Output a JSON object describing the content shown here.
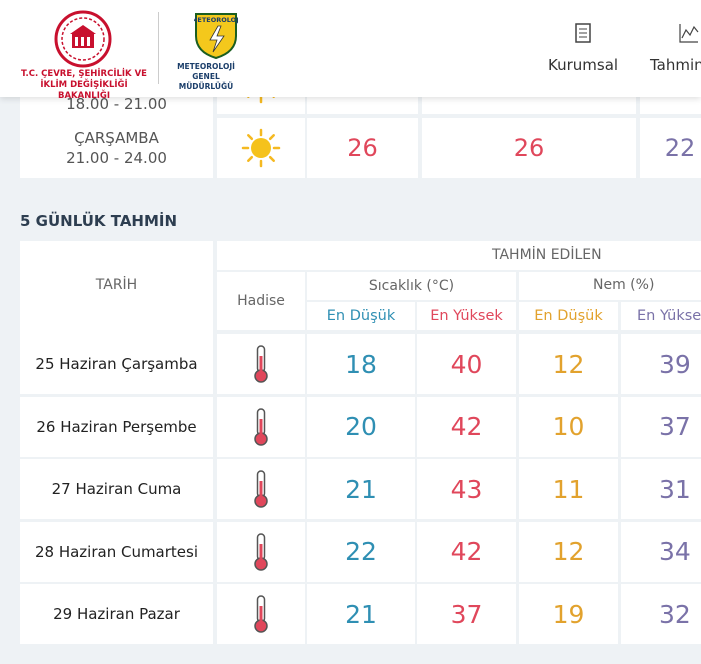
{
  "header": {
    "ministry": [
      "T.C. ÇEVRE, ŞEHİRCİLİK VE",
      "İKLİM DEĞİŞİKLİĞİ BAKANLIĞI"
    ],
    "mgm_badge": "METEOROLOJİ",
    "mgm": [
      "METEOROLOJİ",
      "GENEL MÜDÜRLÜĞÜ"
    ],
    "nav": [
      "Kurumsal",
      "Tahmin"
    ]
  },
  "hourly": {
    "rows": [
      {
        "time": "18.00 - 21.00"
      },
      {
        "day": "ÇARŞAMBA",
        "time": "21.00 - 24.00",
        "values": [
          26,
          26,
          22
        ]
      }
    ]
  },
  "forecast": {
    "title": "5 GÜNLÜK TAHMİN",
    "headers": {
      "date": "TARİH",
      "forecast": "TAHMİN EDİLEN",
      "event": "Hadise",
      "temp": "Sıcaklık (°C)",
      "humidity": "Nem (%)",
      "low": "En Düşük",
      "high": "En Yüksek"
    },
    "rows": [
      {
        "date": "25 Haziran Çarşamba",
        "values": [
          18,
          40,
          12,
          39
        ]
      },
      {
        "date": "26 Haziran Perşembe",
        "values": [
          20,
          42,
          10,
          37
        ]
      },
      {
        "date": "27 Haziran Cuma",
        "values": [
          21,
          43,
          11,
          31
        ]
      },
      {
        "date": "28 Haziran Cumartesi",
        "values": [
          22,
          42,
          12,
          34
        ]
      },
      {
        "date": "29 Haziran Pazar",
        "values": [
          21,
          37,
          19,
          32
        ]
      }
    ]
  }
}
